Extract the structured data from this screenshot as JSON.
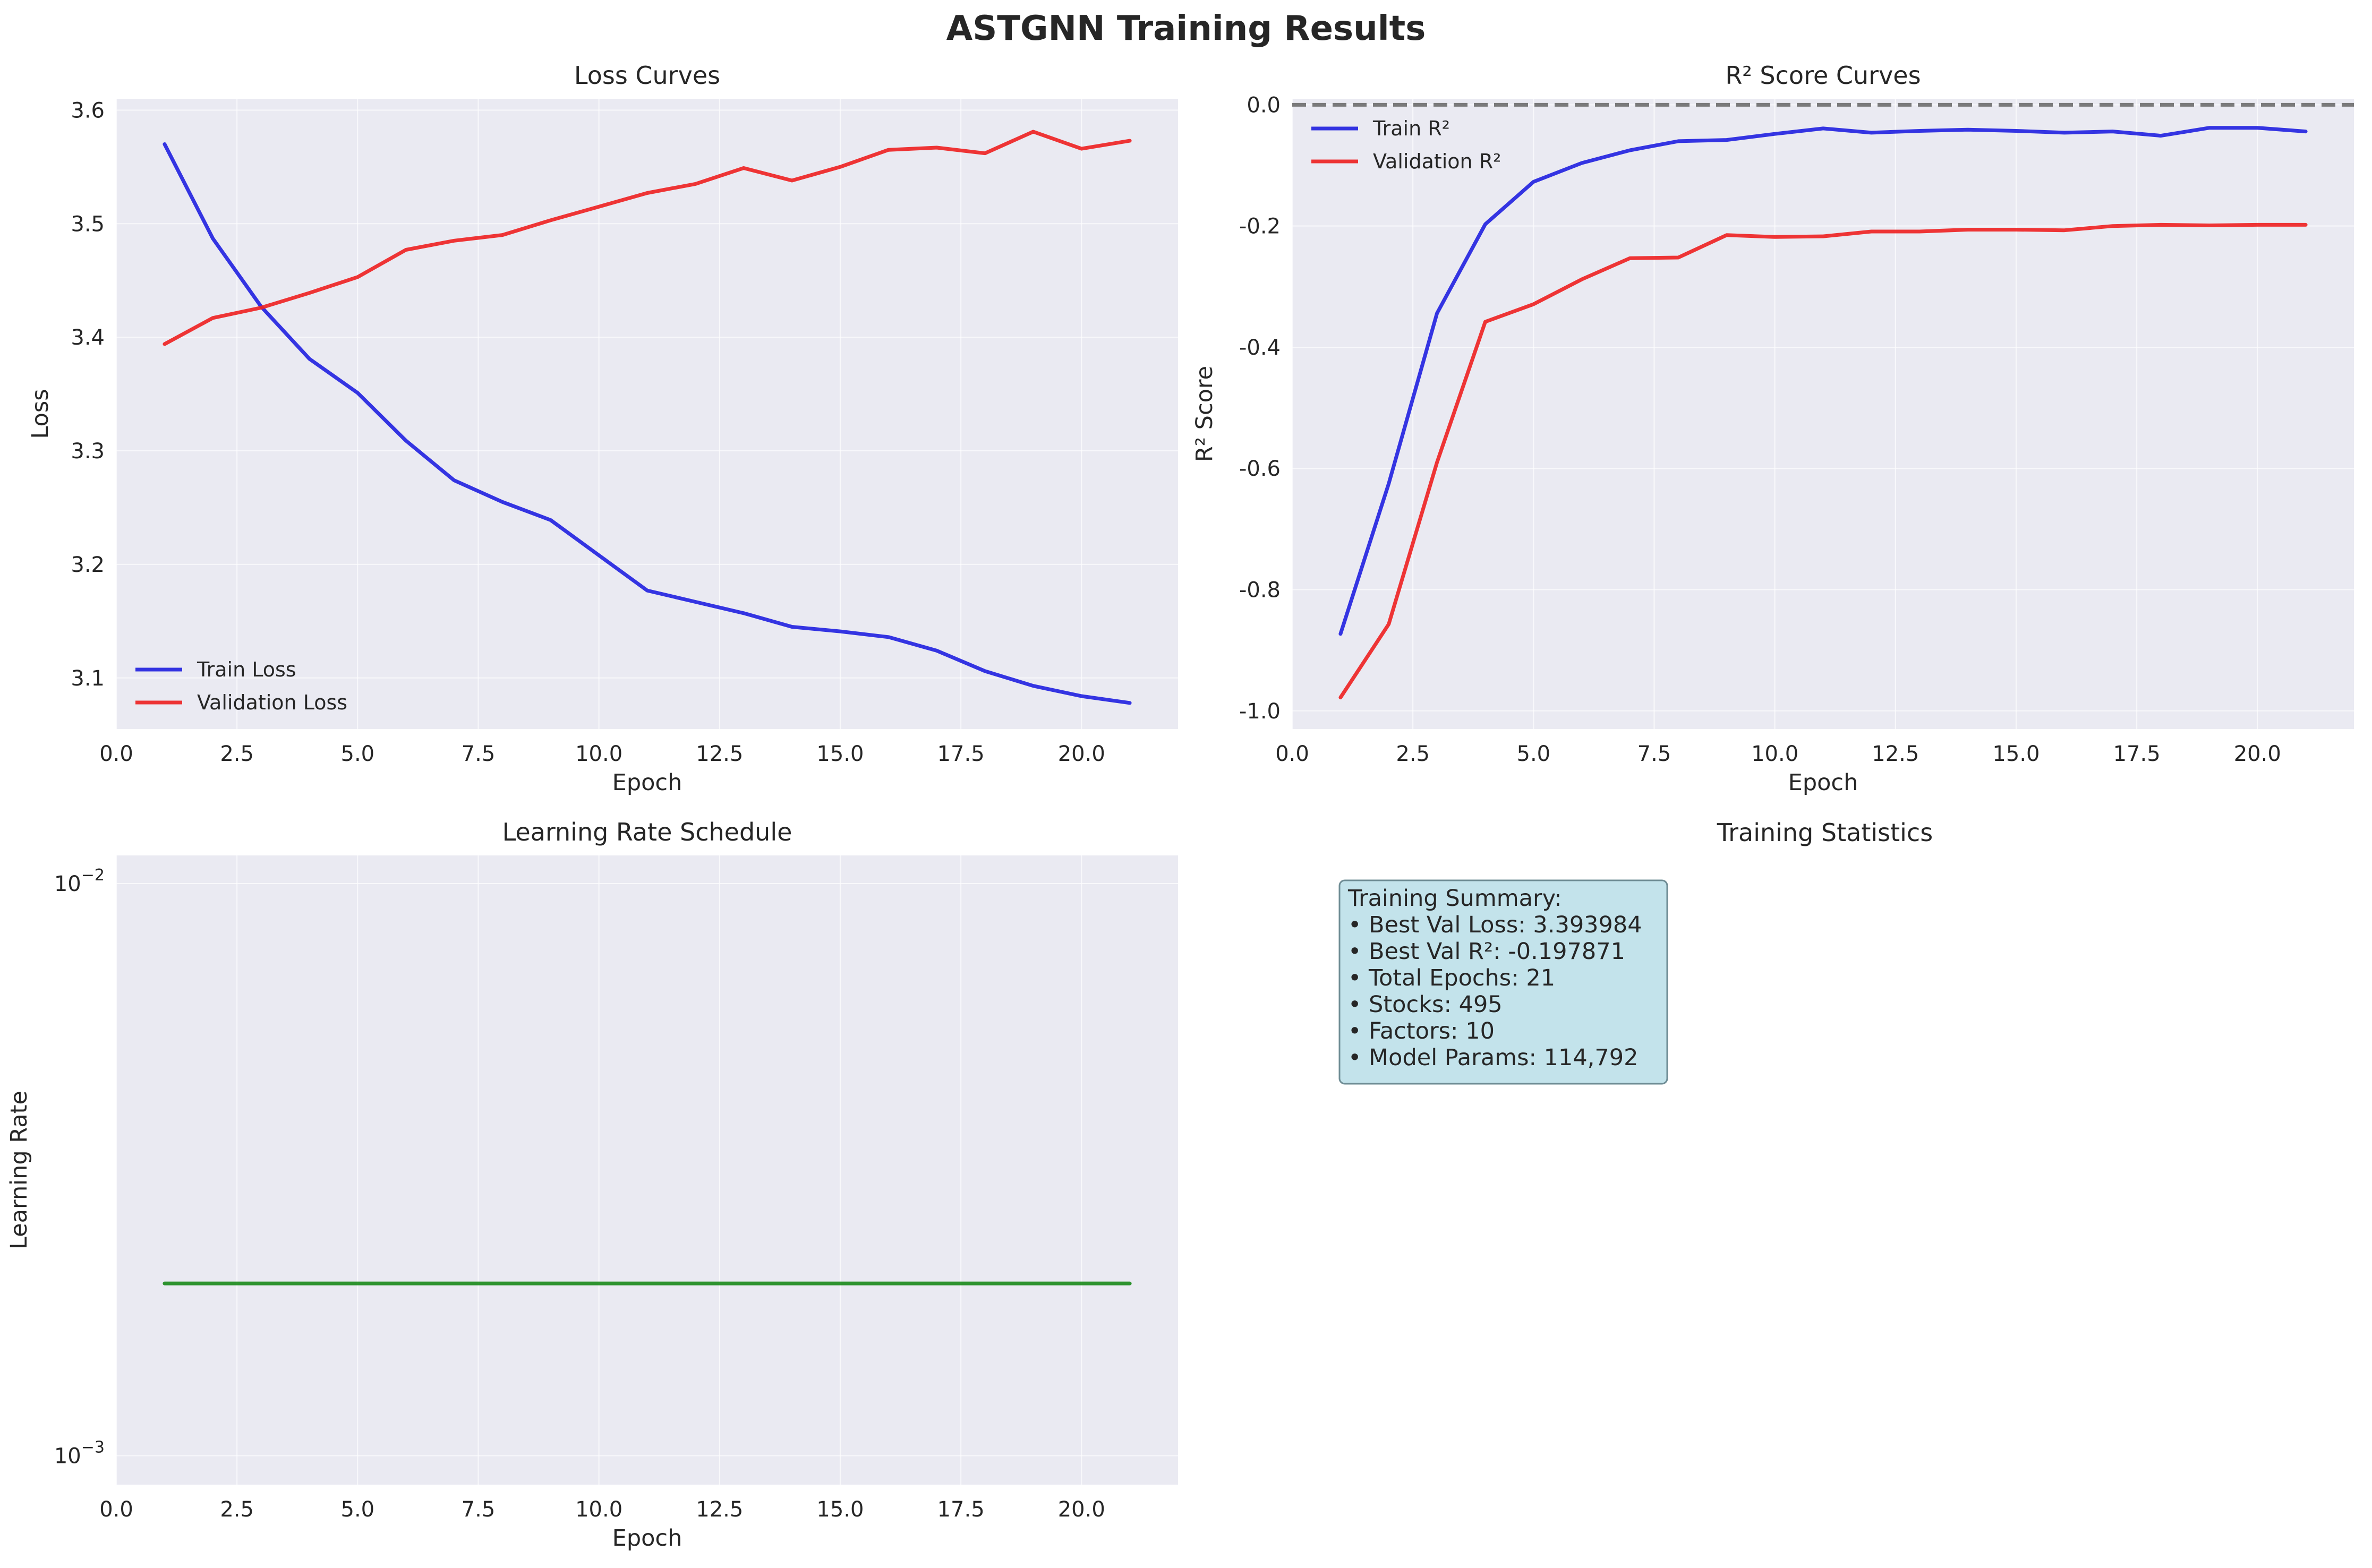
{
  "suptitle": "ASTGNN Training Results",
  "colors": {
    "panel_bg": "#EAEAF2",
    "grid": "#ffffff",
    "text": "#262626",
    "train": "#2020E0",
    "validation": "#EE2020",
    "lr": "#1A8A1A",
    "zero_line": "#666666",
    "stats_box_bg": "#C3E3EB",
    "stats_box_border": "#6E8C94"
  },
  "chart_data": [
    {
      "id": "loss",
      "type": "line",
      "title": "Loss Curves",
      "xlabel": "Epoch",
      "ylabel": "Loss",
      "xlim": [
        0,
        22.0
      ],
      "ylim": [
        3.055,
        3.61
      ],
      "xticks": [
        0,
        2.5,
        5,
        7.5,
        10,
        12.5,
        15,
        17.5,
        20
      ],
      "xtick_labels": [
        "0.0",
        "2.5",
        "5.0",
        "7.5",
        "10.0",
        "12.5",
        "15.0",
        "17.5",
        "20.0"
      ],
      "yticks": [
        3.1,
        3.2,
        3.3,
        3.4,
        3.5,
        3.6
      ],
      "ytick_labels": [
        "3.1",
        "3.2",
        "3.3",
        "3.4",
        "3.5",
        "3.6"
      ],
      "grid": true,
      "legend_loc": "lower-left",
      "x": [
        1,
        2,
        3,
        4,
        5,
        6,
        7,
        8,
        9,
        10,
        11,
        12,
        13,
        14,
        15,
        16,
        17,
        18,
        19,
        20,
        21
      ],
      "series": [
        {
          "name": "Train Loss",
          "color_key": "train",
          "values": [
            3.57,
            3.487,
            3.427,
            3.381,
            3.351,
            3.309,
            3.274,
            3.255,
            3.239,
            3.208,
            3.177,
            3.167,
            3.157,
            3.145,
            3.141,
            3.136,
            3.124,
            3.106,
            3.093,
            3.084,
            3.078
          ]
        },
        {
          "name": "Validation Loss",
          "color_key": "validation",
          "values": [
            3.394,
            3.417,
            3.426,
            3.439,
            3.453,
            3.477,
            3.485,
            3.49,
            3.503,
            3.515,
            3.527,
            3.535,
            3.549,
            3.538,
            3.55,
            3.565,
            3.567,
            3.562,
            3.581,
            3.566,
            3.573
          ]
        }
      ]
    },
    {
      "id": "r2",
      "type": "line",
      "title": "R² Score Curves",
      "xlabel": "Epoch",
      "ylabel": "R² Score",
      "xlim": [
        0,
        22.0
      ],
      "ylim": [
        -1.03,
        0.01
      ],
      "xticks": [
        0,
        2.5,
        5,
        7.5,
        10,
        12.5,
        15,
        17.5,
        20
      ],
      "xtick_labels": [
        "0.0",
        "2.5",
        "5.0",
        "7.5",
        "10.0",
        "12.5",
        "15.0",
        "17.5",
        "20.0"
      ],
      "yticks": [
        -1.0,
        -0.8,
        -0.6,
        -0.4,
        -0.2,
        0.0
      ],
      "ytick_labels": [
        "-1.0",
        "-0.8",
        "-0.6",
        "-0.4",
        "-0.2",
        "0.0"
      ],
      "grid": true,
      "legend_loc": "upper-left",
      "hline": {
        "y": 0,
        "style": "dashed",
        "color_key": "zero_line"
      },
      "x": [
        1,
        2,
        3,
        4,
        5,
        6,
        7,
        8,
        9,
        10,
        11,
        12,
        13,
        14,
        15,
        16,
        17,
        18,
        19,
        20,
        21
      ],
      "series": [
        {
          "name": "Train R²",
          "color_key": "train",
          "values": [
            -0.873,
            -0.625,
            -0.344,
            -0.197,
            -0.127,
            -0.096,
            -0.075,
            -0.06,
            -0.058,
            -0.048,
            -0.039,
            -0.046,
            -0.043,
            -0.041,
            -0.043,
            -0.046,
            -0.044,
            -0.051,
            -0.038,
            -0.038,
            -0.044
          ]
        },
        {
          "name": "Validation R²",
          "color_key": "validation",
          "values": [
            -0.978,
            -0.857,
            -0.59,
            -0.358,
            -0.329,
            -0.288,
            -0.253,
            -0.252,
            -0.215,
            -0.218,
            -0.217,
            -0.209,
            -0.209,
            -0.206,
            -0.206,
            -0.207,
            -0.2,
            -0.198,
            -0.199,
            -0.198,
            -0.198
          ]
        }
      ]
    },
    {
      "id": "lr",
      "type": "line",
      "title": "Learning Rate Schedule",
      "xlabel": "Epoch",
      "ylabel": "Learning Rate",
      "xlim": [
        0,
        22.0
      ],
      "yscale": "log",
      "ylim": [
        0.00089,
        0.0112
      ],
      "xticks": [
        0,
        2.5,
        5,
        7.5,
        10,
        12.5,
        15,
        17.5,
        20
      ],
      "xtick_labels": [
        "0.0",
        "2.5",
        "5.0",
        "7.5",
        "10.0",
        "12.5",
        "15.0",
        "17.5",
        "20.0"
      ],
      "yticks": [
        0.001,
        0.01
      ],
      "ytick_labels": [
        {
          "base": "10",
          "exp": "−3"
        },
        {
          "base": "10",
          "exp": "−2"
        }
      ],
      "grid": true,
      "x": [
        1,
        2,
        3,
        4,
        5,
        6,
        7,
        8,
        9,
        10,
        11,
        12,
        13,
        14,
        15,
        16,
        17,
        18,
        19,
        20,
        21
      ],
      "series": [
        {
          "color_key": "lr",
          "values": [
            0.002,
            0.002,
            0.002,
            0.002,
            0.002,
            0.002,
            0.002,
            0.002,
            0.002,
            0.002,
            0.002,
            0.002,
            0.002,
            0.002,
            0.002,
            0.002,
            0.002,
            0.002,
            0.002,
            0.002,
            0.002
          ]
        }
      ]
    }
  ],
  "stats": {
    "title": "Training Statistics",
    "lines": [
      "Training Summary:",
      "• Best Val Loss: 3.393984",
      "• Best Val R²: -0.197871",
      "• Total Epochs: 21",
      "• Stocks: 495",
      "• Factors: 10",
      "• Model Params: 114,792"
    ]
  }
}
